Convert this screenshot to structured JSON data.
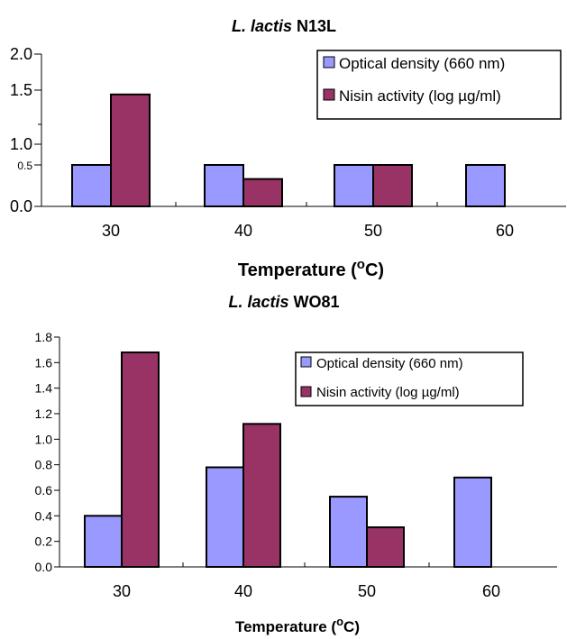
{
  "chart_data": [
    {
      "type": "bar",
      "title_italic": "L. lactis",
      "title_rest": " N13L",
      "categories": [
        "30",
        "40",
        "50",
        "60"
      ],
      "y_ticks": [
        "2.0",
        "1.5",
        "1.0",
        "0.5",
        "0.0"
      ],
      "xlabel_main": "Temperature (",
      "xlabel_sup": "o",
      "xlabel_end": "C)",
      "legend_placement": "top-right",
      "series": [
        {
          "name": "Optical density (660 nm)",
          "color": "#9999ff",
          "values": [
            0.5,
            0.5,
            0.5,
            0.5
          ]
        },
        {
          "name": "Nisin activity (log µg/ml)",
          "color": "#993366",
          "values": [
            1.35,
            0.33,
            0.5,
            0
          ]
        }
      ]
    },
    {
      "type": "bar",
      "title_italic": "L. lactis",
      "title_rest": " WO81",
      "categories": [
        "30",
        "40",
        "50",
        "60"
      ],
      "y_ticks": [
        "1.8",
        "1.6",
        "1.4",
        "1.2",
        "1.0",
        "0.8",
        "0.6",
        "0.4",
        "0.2",
        "0.0"
      ],
      "xlabel_main": "Temperature (",
      "xlabel_sup": "o",
      "xlabel_end": "C)",
      "legend_placement": "top-right",
      "ylim": [
        0,
        1.8
      ],
      "series": [
        {
          "name": "Optical density (660 nm)",
          "color": "#9999ff",
          "values": [
            0.4,
            0.78,
            0.55,
            0.7
          ]
        },
        {
          "name": "Nisin activity (log µg/ml)",
          "color": "#993366",
          "values": [
            1.68,
            1.12,
            0.31,
            0
          ]
        }
      ]
    }
  ]
}
